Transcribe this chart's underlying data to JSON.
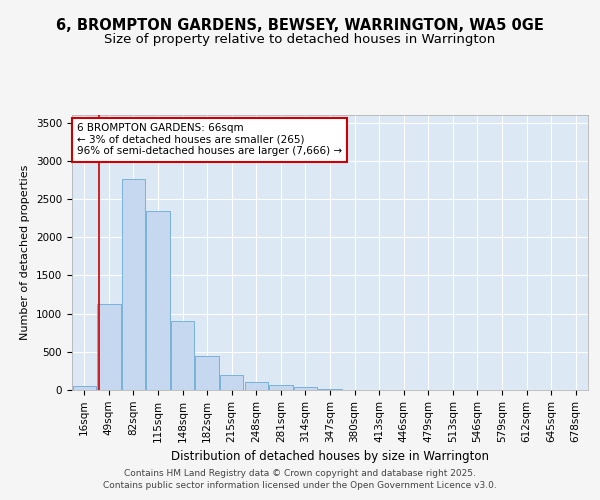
{
  "title_line1": "6, BROMPTON GARDENS, BEWSEY, WARRINGTON, WA5 0GE",
  "title_line2": "Size of property relative to detached houses in Warrington",
  "xlabel": "Distribution of detached houses by size in Warrington",
  "ylabel": "Number of detached properties",
  "bar_labels": [
    "16sqm",
    "49sqm",
    "82sqm",
    "115sqm",
    "148sqm",
    "182sqm",
    "215sqm",
    "248sqm",
    "281sqm",
    "314sqm",
    "347sqm",
    "380sqm",
    "413sqm",
    "446sqm",
    "479sqm",
    "513sqm",
    "546sqm",
    "579sqm",
    "612sqm",
    "645sqm",
    "678sqm"
  ],
  "bar_values": [
    50,
    1120,
    2760,
    2340,
    900,
    440,
    190,
    110,
    65,
    35,
    10,
    5,
    2,
    1,
    0,
    0,
    0,
    0,
    0,
    0,
    0
  ],
  "bar_color": "#c5d8f0",
  "bar_edgecolor": "#6aaad4",
  "annotation_line1": "6 BROMPTON GARDENS: 66sqm",
  "annotation_line2": "← 3% of detached houses are smaller (265)",
  "annotation_line3": "96% of semi-detached houses are larger (7,666) →",
  "annotation_box_facecolor": "#ffffff",
  "annotation_box_edgecolor": "#cc0000",
  "vline_color": "#cc0000",
  "vline_x": 1.0,
  "ylim": [
    0,
    3600
  ],
  "yticks": [
    0,
    500,
    1000,
    1500,
    2000,
    2500,
    3000,
    3500
  ],
  "plot_bgcolor": "#dce9f5",
  "fig_bgcolor": "#f5f5f5",
  "grid_color": "#ffffff",
  "footer_line1": "Contains HM Land Registry data © Crown copyright and database right 2025.",
  "footer_line2": "Contains public sector information licensed under the Open Government Licence v3.0.",
  "title_fontsize": 10.5,
  "subtitle_fontsize": 9.5,
  "axis_label_fontsize": 8.5,
  "tick_fontsize": 7.5,
  "annotation_fontsize": 7.5,
  "footer_fontsize": 6.5,
  "ylabel_fontsize": 8
}
